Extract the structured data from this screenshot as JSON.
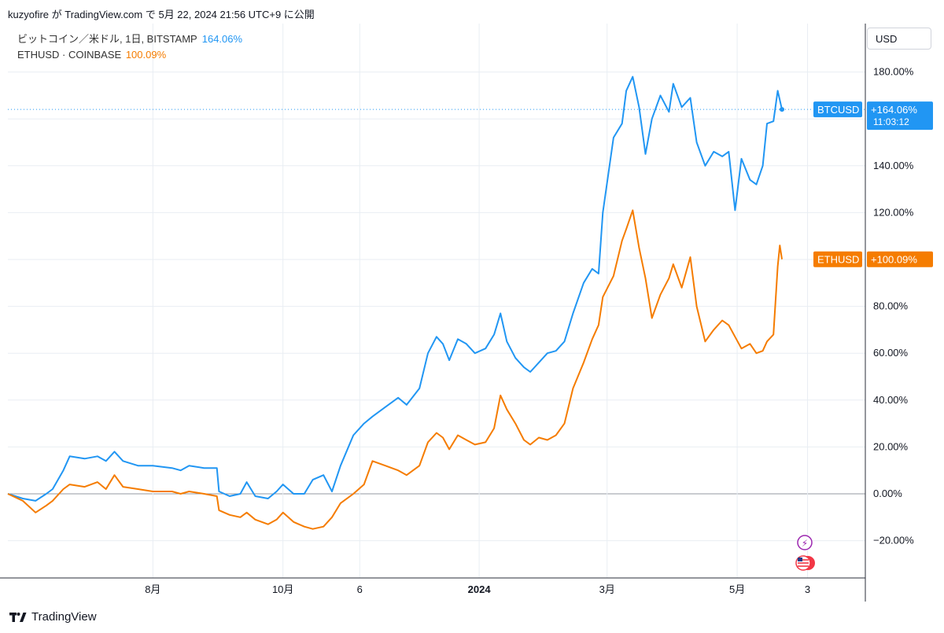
{
  "header": {
    "text": "kuzyofire が TradingView.com で 5月 22, 2024 21:56 UTC+9 に公開"
  },
  "legend": {
    "btc_name": "ビットコイン／米ドル, 1日, BITSTAMP",
    "btc_value": "164.06%",
    "eth_name": "ETHUSD · COINBASE",
    "eth_value": "100.09%"
  },
  "currency_button": "USD",
  "price_tags": {
    "btc_symbol": "BTCUSD",
    "btc_value": "+164.06%",
    "btc_countdown": "11:03:12",
    "eth_symbol": "ETHUSD",
    "eth_value": "+100.09%"
  },
  "footer": {
    "brand": "TradingView"
  },
  "colors": {
    "btc": "#2196f3",
    "eth": "#f57c00",
    "grid": "#e9eef3",
    "axis_text": "#131722"
  },
  "chart_data": {
    "type": "line",
    "y_unit": "%",
    "ylim": [
      -36,
      200
    ],
    "y_ticks": [
      "180.00%",
      "140.00%",
      "120.00%",
      "80.00%",
      "60.00%",
      "40.00%",
      "20.00%",
      "0.00%",
      "−20.00%"
    ],
    "y_tick_values": [
      180,
      140,
      120,
      80,
      60,
      40,
      20,
      0,
      -20
    ],
    "x_ticks": [
      "8月",
      "10月",
      "6",
      "2024",
      "3月",
      "5月",
      "3"
    ],
    "x_tick_bold": [
      false,
      false,
      false,
      true,
      false,
      false,
      false
    ],
    "x_tick_dates": [
      "2023-08-01",
      "2023-10-01",
      "2023-11-06",
      "2024-01-01",
      "2024-03-01",
      "2024-05-01",
      "2024-06-03"
    ],
    "x_range": [
      "2023-05-25",
      "2024-06-12"
    ],
    "series": [
      {
        "name": "BTCUSD",
        "values": [
          [
            "2023-05-25",
            0
          ],
          [
            "2023-06-01",
            -2
          ],
          [
            "2023-06-07",
            -3
          ],
          [
            "2023-06-12",
            0
          ],
          [
            "2023-06-15",
            2
          ],
          [
            "2023-06-20",
            10
          ],
          [
            "2023-06-23",
            16
          ],
          [
            "2023-06-30",
            15
          ],
          [
            "2023-07-06",
            16
          ],
          [
            "2023-07-10",
            14
          ],
          [
            "2023-07-14",
            18
          ],
          [
            "2023-07-18",
            14
          ],
          [
            "2023-07-25",
            12
          ],
          [
            "2023-08-01",
            12
          ],
          [
            "2023-08-10",
            11
          ],
          [
            "2023-08-14",
            10
          ],
          [
            "2023-08-18",
            12
          ],
          [
            "2023-08-25",
            11
          ],
          [
            "2023-08-31",
            11
          ],
          [
            "2023-09-01",
            1
          ],
          [
            "2023-09-06",
            -1
          ],
          [
            "2023-09-11",
            0
          ],
          [
            "2023-09-14",
            5
          ],
          [
            "2023-09-18",
            -1
          ],
          [
            "2023-09-24",
            -2
          ],
          [
            "2023-09-28",
            1
          ],
          [
            "2023-10-01",
            4
          ],
          [
            "2023-10-06",
            0
          ],
          [
            "2023-10-11",
            0
          ],
          [
            "2023-10-15",
            6
          ],
          [
            "2023-10-20",
            8
          ],
          [
            "2023-10-24",
            1
          ],
          [
            "2023-10-28",
            12
          ],
          [
            "2023-11-03",
            25
          ],
          [
            "2023-11-08",
            30
          ],
          [
            "2023-11-12",
            33
          ],
          [
            "2023-11-18",
            37
          ],
          [
            "2023-11-24",
            41
          ],
          [
            "2023-11-28",
            38
          ],
          [
            "2023-12-04",
            45
          ],
          [
            "2023-12-08",
            60
          ],
          [
            "2023-12-12",
            67
          ],
          [
            "2023-12-15",
            64
          ],
          [
            "2023-12-18",
            57
          ],
          [
            "2023-12-22",
            66
          ],
          [
            "2023-12-26",
            64
          ],
          [
            "2023-12-30",
            60
          ],
          [
            "2024-01-04",
            62
          ],
          [
            "2024-01-08",
            68
          ],
          [
            "2024-01-11",
            77
          ],
          [
            "2024-01-14",
            65
          ],
          [
            "2024-01-18",
            58
          ],
          [
            "2024-01-22",
            54
          ],
          [
            "2024-01-25",
            52
          ],
          [
            "2024-01-29",
            56
          ],
          [
            "2024-02-02",
            60
          ],
          [
            "2024-02-06",
            61
          ],
          [
            "2024-02-10",
            65
          ],
          [
            "2024-02-14",
            77
          ],
          [
            "2024-02-19",
            90
          ],
          [
            "2024-02-23",
            96
          ],
          [
            "2024-02-26",
            94
          ],
          [
            "2024-02-28",
            120
          ],
          [
            "2024-03-04",
            152
          ],
          [
            "2024-03-08",
            158
          ],
          [
            "2024-03-10",
            172
          ],
          [
            "2024-03-13",
            178
          ],
          [
            "2024-03-16",
            165
          ],
          [
            "2024-03-19",
            145
          ],
          [
            "2024-03-22",
            160
          ],
          [
            "2024-03-26",
            170
          ],
          [
            "2024-03-30",
            163
          ],
          [
            "2024-04-01",
            175
          ],
          [
            "2024-04-05",
            165
          ],
          [
            "2024-04-09",
            169
          ],
          [
            "2024-04-12",
            150
          ],
          [
            "2024-04-16",
            140
          ],
          [
            "2024-04-20",
            146
          ],
          [
            "2024-04-24",
            144
          ],
          [
            "2024-04-27",
            146
          ],
          [
            "2024-04-30",
            121
          ],
          [
            "2024-05-03",
            143
          ],
          [
            "2024-05-07",
            134
          ],
          [
            "2024-05-10",
            132
          ],
          [
            "2024-05-13",
            140
          ],
          [
            "2024-05-15",
            158
          ],
          [
            "2024-05-18",
            159
          ],
          [
            "2024-05-20",
            172
          ],
          [
            "2024-05-22",
            164.06
          ]
        ]
      },
      {
        "name": "ETHUSD",
        "values": [
          [
            "2023-05-25",
            0
          ],
          [
            "2023-06-01",
            -3
          ],
          [
            "2023-06-07",
            -8
          ],
          [
            "2023-06-12",
            -5
          ],
          [
            "2023-06-15",
            -3
          ],
          [
            "2023-06-20",
            2
          ],
          [
            "2023-06-23",
            4
          ],
          [
            "2023-06-30",
            3
          ],
          [
            "2023-07-06",
            5
          ],
          [
            "2023-07-10",
            2
          ],
          [
            "2023-07-14",
            8
          ],
          [
            "2023-07-18",
            3
          ],
          [
            "2023-07-25",
            2
          ],
          [
            "2023-08-01",
            1
          ],
          [
            "2023-08-10",
            1
          ],
          [
            "2023-08-14",
            0
          ],
          [
            "2023-08-18",
            1
          ],
          [
            "2023-08-25",
            0
          ],
          [
            "2023-08-31",
            -1
          ],
          [
            "2023-09-01",
            -7
          ],
          [
            "2023-09-06",
            -9
          ],
          [
            "2023-09-11",
            -10
          ],
          [
            "2023-09-14",
            -8
          ],
          [
            "2023-09-18",
            -11
          ],
          [
            "2023-09-24",
            -13
          ],
          [
            "2023-09-28",
            -11
          ],
          [
            "2023-10-01",
            -8
          ],
          [
            "2023-10-06",
            -12
          ],
          [
            "2023-10-11",
            -14
          ],
          [
            "2023-10-15",
            -15
          ],
          [
            "2023-10-20",
            -14
          ],
          [
            "2023-10-24",
            -10
          ],
          [
            "2023-10-28",
            -4
          ],
          [
            "2023-11-03",
            0
          ],
          [
            "2023-11-08",
            4
          ],
          [
            "2023-11-12",
            14
          ],
          [
            "2023-11-18",
            12
          ],
          [
            "2023-11-24",
            10
          ],
          [
            "2023-11-28",
            8
          ],
          [
            "2023-12-04",
            12
          ],
          [
            "2023-12-08",
            22
          ],
          [
            "2023-12-12",
            26
          ],
          [
            "2023-12-15",
            24
          ],
          [
            "2023-12-18",
            19
          ],
          [
            "2023-12-22",
            25
          ],
          [
            "2023-12-26",
            23
          ],
          [
            "2023-12-30",
            21
          ],
          [
            "2024-01-04",
            22
          ],
          [
            "2024-01-08",
            28
          ],
          [
            "2024-01-11",
            42
          ],
          [
            "2024-01-14",
            36
          ],
          [
            "2024-01-18",
            30
          ],
          [
            "2024-01-22",
            23
          ],
          [
            "2024-01-25",
            21
          ],
          [
            "2024-01-29",
            24
          ],
          [
            "2024-02-02",
            23
          ],
          [
            "2024-02-06",
            25
          ],
          [
            "2024-02-10",
            30
          ],
          [
            "2024-02-14",
            45
          ],
          [
            "2024-02-19",
            56
          ],
          [
            "2024-02-23",
            66
          ],
          [
            "2024-02-26",
            72
          ],
          [
            "2024-02-28",
            84
          ],
          [
            "2024-03-04",
            93
          ],
          [
            "2024-03-08",
            108
          ],
          [
            "2024-03-10",
            113
          ],
          [
            "2024-03-13",
            121
          ],
          [
            "2024-03-16",
            105
          ],
          [
            "2024-03-19",
            92
          ],
          [
            "2024-03-22",
            75
          ],
          [
            "2024-03-26",
            85
          ],
          [
            "2024-03-30",
            92
          ],
          [
            "2024-04-01",
            98
          ],
          [
            "2024-04-05",
            88
          ],
          [
            "2024-04-09",
            101
          ],
          [
            "2024-04-12",
            80
          ],
          [
            "2024-04-16",
            65
          ],
          [
            "2024-04-20",
            70
          ],
          [
            "2024-04-24",
            74
          ],
          [
            "2024-04-27",
            72
          ],
          [
            "2024-04-30",
            67
          ],
          [
            "2024-05-03",
            62
          ],
          [
            "2024-05-07",
            64
          ],
          [
            "2024-05-10",
            60
          ],
          [
            "2024-05-13",
            61
          ],
          [
            "2024-05-15",
            65
          ],
          [
            "2024-05-18",
            68
          ],
          [
            "2024-05-20",
            97
          ],
          [
            "2024-05-21",
            106
          ],
          [
            "2024-05-22",
            100.09
          ]
        ]
      }
    ]
  }
}
